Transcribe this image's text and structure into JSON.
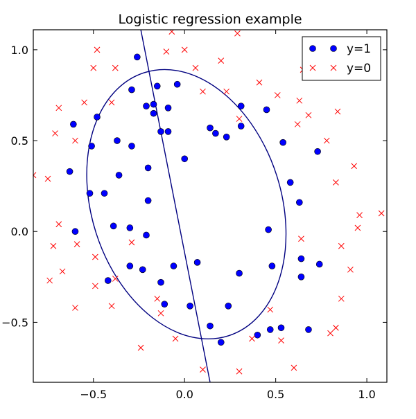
{
  "chart_data": {
    "type": "scatter",
    "title": "Logistic regression example",
    "xlabel": "",
    "ylabel": "",
    "xlim": [
      -0.83,
      1.11
    ],
    "ylim": [
      -0.83,
      1.11
    ],
    "x_ticks": [
      -0.5,
      0.0,
      0.5,
      1.0
    ],
    "x_tick_labels": [
      "−0.5",
      "0.0",
      "0.5",
      "1.0"
    ],
    "y_ticks": [
      -0.5,
      0.0,
      0.5,
      1.0
    ],
    "y_tick_labels": [
      "−0.5",
      "0.0",
      "0.5",
      "1.0"
    ],
    "grid": false,
    "legend_position": "top-right",
    "series": [
      {
        "name": "y=1",
        "marker": "circle",
        "color": "#0000ff",
        "points": [
          [
            -0.26,
            0.96
          ],
          [
            -0.29,
            0.78
          ],
          [
            -0.15,
            0.8
          ],
          [
            -0.04,
            0.81
          ],
          [
            -0.61,
            0.59
          ],
          [
            -0.48,
            0.63
          ],
          [
            -0.21,
            0.69
          ],
          [
            -0.17,
            0.7
          ],
          [
            -0.17,
            0.65
          ],
          [
            -0.09,
            0.68
          ],
          [
            0.31,
            0.69
          ],
          [
            0.45,
            0.67
          ],
          [
            -0.13,
            0.55
          ],
          [
            -0.09,
            0.55
          ],
          [
            0.14,
            0.57
          ],
          [
            0.17,
            0.54
          ],
          [
            0.23,
            0.52
          ],
          [
            0.31,
            0.58
          ],
          [
            -0.37,
            0.5
          ],
          [
            -0.29,
            0.47
          ],
          [
            -0.51,
            0.47
          ],
          [
            0.54,
            0.49
          ],
          [
            0.73,
            0.44
          ],
          [
            0.0,
            0.4
          ],
          [
            -0.63,
            0.33
          ],
          [
            -0.2,
            0.35
          ],
          [
            -0.36,
            0.31
          ],
          [
            0.58,
            0.27
          ],
          [
            -0.52,
            0.21
          ],
          [
            -0.44,
            0.21
          ],
          [
            -0.2,
            0.17
          ],
          [
            0.63,
            0.16
          ],
          [
            -0.6,
            0.0
          ],
          [
            -0.39,
            0.03
          ],
          [
            -0.3,
            0.02
          ],
          [
            -0.21,
            -0.02
          ],
          [
            0.46,
            0.01
          ],
          [
            0.07,
            -0.17
          ],
          [
            -0.3,
            -0.19
          ],
          [
            -0.23,
            -0.21
          ],
          [
            -0.06,
            -0.19
          ],
          [
            0.48,
            -0.19
          ],
          [
            0.64,
            -0.15
          ],
          [
            0.74,
            -0.18
          ],
          [
            0.3,
            -0.23
          ],
          [
            0.64,
            -0.25
          ],
          [
            -0.42,
            -0.27
          ],
          [
            -0.13,
            -0.28
          ],
          [
            -0.11,
            -0.4
          ],
          [
            0.03,
            -0.41
          ],
          [
            0.24,
            -0.41
          ],
          [
            0.14,
            -0.52
          ],
          [
            0.2,
            -0.61
          ],
          [
            0.4,
            -0.57
          ],
          [
            0.47,
            -0.54
          ],
          [
            0.53,
            -0.53
          ],
          [
            0.68,
            -0.54
          ]
        ]
      },
      {
        "name": "y=0",
        "marker": "x",
        "color": "#ff0000",
        "points": [
          [
            -0.07,
            1.1
          ],
          [
            0.29,
            1.09
          ],
          [
            -0.48,
            1.0
          ],
          [
            -0.1,
            0.99
          ],
          [
            0.0,
            1.0
          ],
          [
            -0.5,
            0.9
          ],
          [
            -0.38,
            0.9
          ],
          [
            0.06,
            0.9
          ],
          [
            0.2,
            0.94
          ],
          [
            0.65,
            0.89
          ],
          [
            0.41,
            0.82
          ],
          [
            0.1,
            0.77
          ],
          [
            0.23,
            0.77
          ],
          [
            0.51,
            0.75
          ],
          [
            0.63,
            0.72
          ],
          [
            -0.55,
            0.71
          ],
          [
            -0.4,
            0.71
          ],
          [
            -0.69,
            0.68
          ],
          [
            0.68,
            0.64
          ],
          [
            0.84,
            0.66
          ],
          [
            0.3,
            0.62
          ],
          [
            0.62,
            0.59
          ],
          [
            -0.71,
            0.54
          ],
          [
            -0.6,
            0.5
          ],
          [
            0.78,
            0.5
          ],
          [
            -0.83,
            0.31
          ],
          [
            -0.75,
            0.29
          ],
          [
            0.93,
            0.36
          ],
          [
            0.83,
            0.27
          ],
          [
            0.96,
            0.09
          ],
          [
            -0.69,
            0.04
          ],
          [
            1.08,
            0.1
          ],
          [
            0.95,
            0.02
          ],
          [
            -0.59,
            -0.07
          ],
          [
            0.64,
            -0.04
          ],
          [
            -0.29,
            -0.06
          ],
          [
            -0.72,
            -0.08
          ],
          [
            0.86,
            -0.08
          ],
          [
            -0.49,
            -0.14
          ],
          [
            -0.67,
            -0.22
          ],
          [
            0.91,
            -0.21
          ],
          [
            -0.74,
            -0.27
          ],
          [
            -0.38,
            -0.26
          ],
          [
            -0.49,
            -0.3
          ],
          [
            -0.15,
            -0.37
          ],
          [
            0.86,
            -0.37
          ],
          [
            -0.4,
            -0.41
          ],
          [
            -0.6,
            -0.42
          ],
          [
            -0.13,
            -0.45
          ],
          [
            0.47,
            -0.43
          ],
          [
            0.83,
            -0.53
          ],
          [
            0.8,
            -0.56
          ],
          [
            -0.05,
            -0.59
          ],
          [
            0.37,
            -0.59
          ],
          [
            0.53,
            -0.6
          ],
          [
            -0.24,
            -0.64
          ],
          [
            0.6,
            -0.75
          ],
          [
            0.1,
            -0.76
          ],
          [
            0.3,
            -0.77
          ]
        ]
      }
    ],
    "decision_boundary": {
      "color": "#000080",
      "line": {
        "x1": -0.24,
        "y1": 1.11,
        "x2": 0.14,
        "y2": -0.83
      },
      "ellipse": {
        "cx": 0.01,
        "cy": 0.15,
        "rx": 0.52,
        "ry": 0.76,
        "rotation_deg": -17.75
      }
    }
  }
}
